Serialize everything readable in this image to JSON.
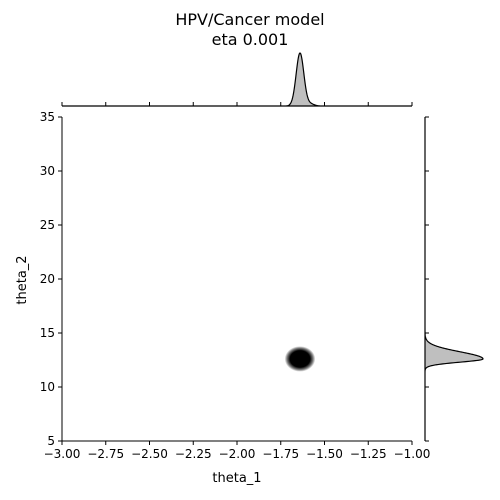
{
  "chart_data": {
    "type": "scatter",
    "subtype": "joint-density-with-marginal-kde",
    "title_line1": "HPV/Cancer model",
    "title_line2": "eta 0.001",
    "xlabel": "theta_1",
    "ylabel": "theta_2",
    "xlim": [
      -3.0,
      -1.0
    ],
    "ylim": [
      5,
      35
    ],
    "x_ticks": [
      -3.0,
      -2.75,
      -2.5,
      -2.25,
      -2.0,
      -1.75,
      -1.5,
      -1.25,
      -1.0
    ],
    "x_tick_labels": [
      "−3.00",
      "−2.75",
      "−2.50",
      "−2.25",
      "−2.00",
      "−1.75",
      "−1.50",
      "−1.25",
      "−1.00"
    ],
    "y_ticks": [
      5,
      10,
      15,
      20,
      25,
      30,
      35
    ],
    "y_tick_labels": [
      "5",
      "10",
      "15",
      "20",
      "25",
      "30",
      "35"
    ],
    "grid": false,
    "joint_density": {
      "center": {
        "theta_1": -1.64,
        "theta_2": 12.6
      },
      "spread": {
        "theta_1": 0.03,
        "theta_2": 0.45
      },
      "color": "#000000"
    },
    "marginal_x": {
      "mode": -1.64,
      "sd": 0.022,
      "fill": "#bfbfbf",
      "line": "#000000"
    },
    "marginal_y": {
      "mode": 12.6,
      "sd": 0.3,
      "fill": "#bfbfbf",
      "line": "#000000"
    }
  }
}
